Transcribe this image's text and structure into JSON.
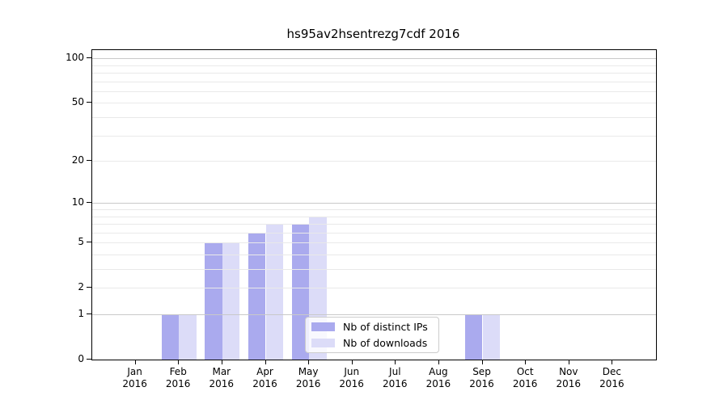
{
  "chart_data": {
    "type": "bar",
    "title": "hs95av2hsentrezg7cdf 2016",
    "categories": [
      "Jan",
      "Feb",
      "Mar",
      "Apr",
      "May",
      "Jun",
      "Jul",
      "Aug",
      "Sep",
      "Oct",
      "Nov",
      "Dec"
    ],
    "year": "2016",
    "series": [
      {
        "name": "Nb of distinct IPs",
        "color": "#aaaaee",
        "values": [
          0,
          1,
          5,
          6,
          7,
          0,
          0,
          0,
          1,
          0,
          0,
          0
        ]
      },
      {
        "name": "Nb of downloads",
        "color": "#dcdcf8",
        "values": [
          0,
          1,
          5,
          7,
          8,
          0,
          0,
          0,
          1,
          0,
          0,
          0
        ]
      }
    ],
    "yscale": "log1p",
    "ylim": [
      0,
      114
    ],
    "ytick_labels": [
      0,
      1,
      2,
      5,
      10,
      20,
      50,
      100
    ],
    "ymajor_gridlines": [
      1,
      10,
      100
    ],
    "yminor_gridlines": [
      2,
      3,
      4,
      5,
      6,
      7,
      8,
      9,
      20,
      30,
      40,
      50,
      60,
      70,
      80,
      90
    ],
    "grid": "horizontal",
    "legend_position": "lower center-right",
    "colors": {
      "bar_distinct_ips": "#aaaaee",
      "bar_downloads": "#dcdcf8",
      "major_grid": "#c9c9c9",
      "minor_grid": "#e9e9e9",
      "spine": "#000000",
      "legend_border": "#cccccc"
    }
  }
}
